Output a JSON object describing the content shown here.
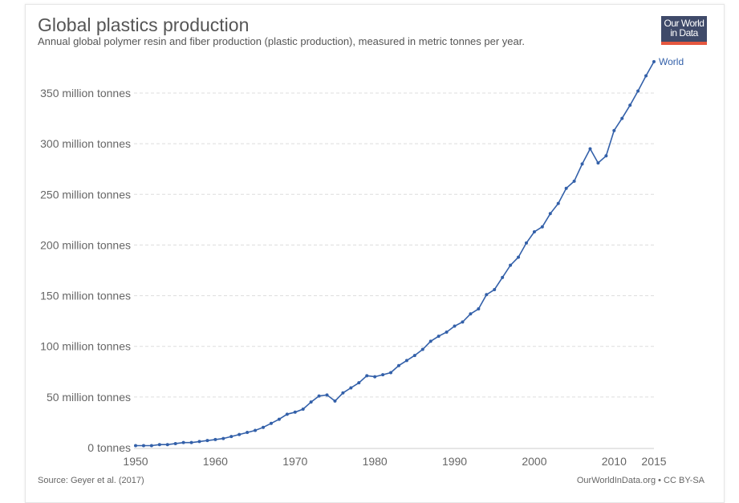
{
  "header": {
    "title": "Global plastics production",
    "subtitle": "Annual global polymer resin and fiber production (plastic production), measured in metric tonnes per year.",
    "logo_line1": "Our World",
    "logo_line2": "in Data"
  },
  "footer": {
    "source": "Source: Geyer et al. (2017)",
    "license": "OurWorldInData.org • CC BY-SA"
  },
  "colors": {
    "series": "#3360a9",
    "grid": "#dddddd",
    "logo_bg": "#3f4a69",
    "logo_accent": "#e5573f"
  },
  "chart_data": {
    "type": "line",
    "title": "Global plastics production",
    "subtitle": "Annual global polymer resin and fiber production (plastic production), measured in metric tonnes per year.",
    "xlabel": "",
    "ylabel": "",
    "xlim": [
      1950,
      2015
    ],
    "ylim": [
      0,
      381
    ],
    "grid": true,
    "legend_placement": "right, at line end",
    "x_ticks": [
      1950,
      1960,
      1970,
      1980,
      1990,
      2000,
      2010,
      2015
    ],
    "y_ticks": [
      0,
      50,
      100,
      150,
      200,
      250,
      300,
      350
    ],
    "y_tick_labels": [
      "0 tonnes",
      "50 million tonnes",
      "100 million tonnes",
      "150 million tonnes",
      "200 million tonnes",
      "250 million tonnes",
      "300 million tonnes",
      "350 million tonnes"
    ],
    "units": "million tonnes",
    "series": [
      {
        "name": "World",
        "x": [
          1950,
          1951,
          1952,
          1953,
          1954,
          1955,
          1956,
          1957,
          1958,
          1959,
          1960,
          1961,
          1962,
          1963,
          1964,
          1965,
          1966,
          1967,
          1968,
          1969,
          1970,
          1971,
          1972,
          1973,
          1974,
          1975,
          1976,
          1977,
          1978,
          1979,
          1980,
          1981,
          1982,
          1983,
          1984,
          1985,
          1986,
          1987,
          1988,
          1989,
          1990,
          1991,
          1992,
          1993,
          1994,
          1995,
          1996,
          1997,
          1998,
          1999,
          2000,
          2001,
          2002,
          2003,
          2004,
          2005,
          2006,
          2007,
          2008,
          2009,
          2010,
          2011,
          2012,
          2013,
          2014,
          2015
        ],
        "values": [
          2,
          2,
          2,
          3,
          3,
          4,
          5,
          5,
          6,
          7,
          8,
          9,
          11,
          13,
          15,
          17,
          20,
          24,
          28,
          33,
          35,
          38,
          45,
          51,
          52,
          46,
          54,
          59,
          64,
          71,
          70,
          72,
          74,
          81,
          86,
          91,
          97,
          105,
          110,
          114,
          120,
          124,
          132,
          137,
          151,
          156,
          168,
          180,
          188,
          202,
          213,
          218,
          231,
          241,
          256,
          263,
          280,
          295,
          281,
          288,
          313,
          325,
          338,
          352,
          367,
          381
        ]
      }
    ]
  }
}
